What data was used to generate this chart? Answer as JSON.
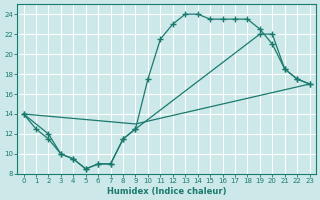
{
  "xlabel": "Humidex (Indice chaleur)",
  "bg_color": "#cce8e8",
  "grid_color": "#ffffff",
  "line_color": "#1a7a6e",
  "xlim": [
    -0.5,
    23.5
  ],
  "ylim": [
    8,
    25
  ],
  "yticks": [
    8,
    10,
    12,
    14,
    16,
    18,
    20,
    22,
    24
  ],
  "xticks": [
    0,
    1,
    2,
    3,
    4,
    5,
    6,
    7,
    8,
    9,
    10,
    11,
    12,
    13,
    14,
    15,
    16,
    17,
    18,
    19,
    20,
    21,
    22,
    23
  ],
  "line1_x": [
    0,
    1,
    2,
    3,
    4,
    5,
    6,
    7,
    8,
    9,
    10,
    11,
    12,
    13,
    14,
    15,
    16,
    17,
    18,
    19,
    20,
    21,
    22,
    23
  ],
  "line1_y": [
    14.0,
    12.5,
    11.5,
    10.0,
    9.5,
    8.5,
    9.0,
    9.0,
    11.5,
    12.5,
    17.5,
    21.5,
    23.0,
    24.0,
    24.0,
    23.5,
    23.5,
    23.5,
    23.5,
    22.5,
    21.0,
    18.5,
    17.5,
    17.0
  ],
  "line2_x": [
    0,
    9,
    23
  ],
  "line2_y": [
    14.0,
    13.0,
    17.0
  ],
  "line3_x": [
    0,
    2,
    3,
    4,
    5,
    6,
    7,
    8,
    9,
    19,
    20,
    21,
    22,
    23
  ],
  "line3_y": [
    14.0,
    12.0,
    10.0,
    9.5,
    8.5,
    9.0,
    9.0,
    11.5,
    12.5,
    22.0,
    22.0,
    18.5,
    17.5,
    17.0
  ]
}
